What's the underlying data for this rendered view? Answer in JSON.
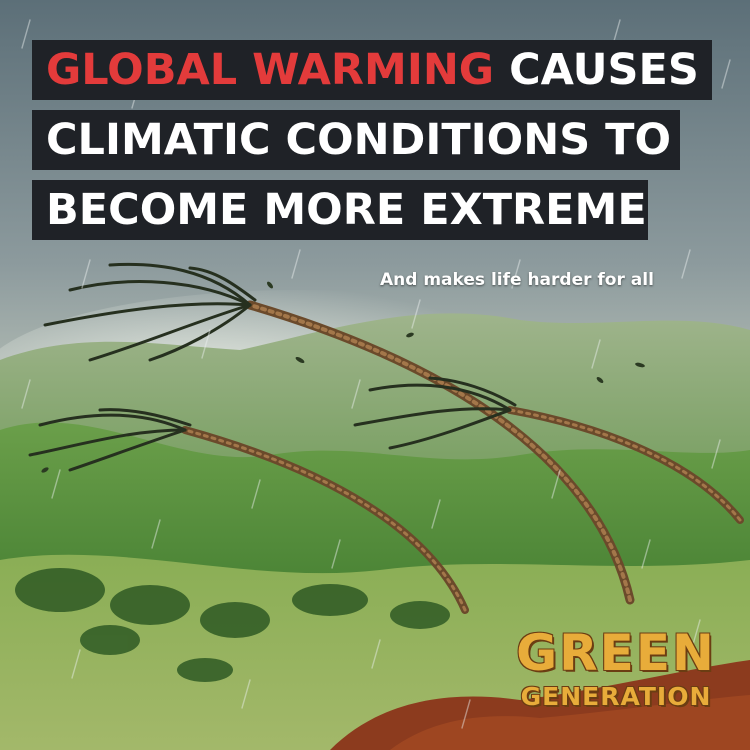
{
  "headline": {
    "line1_highlight": "GLOBAL WARMING",
    "line1_rest": " CAUSES",
    "line2": "CLIMATIC CONDITIONS TO",
    "line3": "BECOME MORE EXTREME"
  },
  "subheadline": "And makes life harder for all",
  "logo": {
    "line1": "GREEN",
    "line2": "GENERATION"
  },
  "colors": {
    "headline_highlight": "#e33b3b",
    "headline_text": "#ffffff",
    "headline_box": "#1f2227",
    "logo_text": "#e8ac3a",
    "sky": "#6f7f86",
    "hills": "#3f7a2e",
    "soil": "#8c3b1e"
  },
  "scene_elements": [
    "storm-sky",
    "rain",
    "green-hills",
    "bending-palm-trees",
    "red-soil"
  ]
}
